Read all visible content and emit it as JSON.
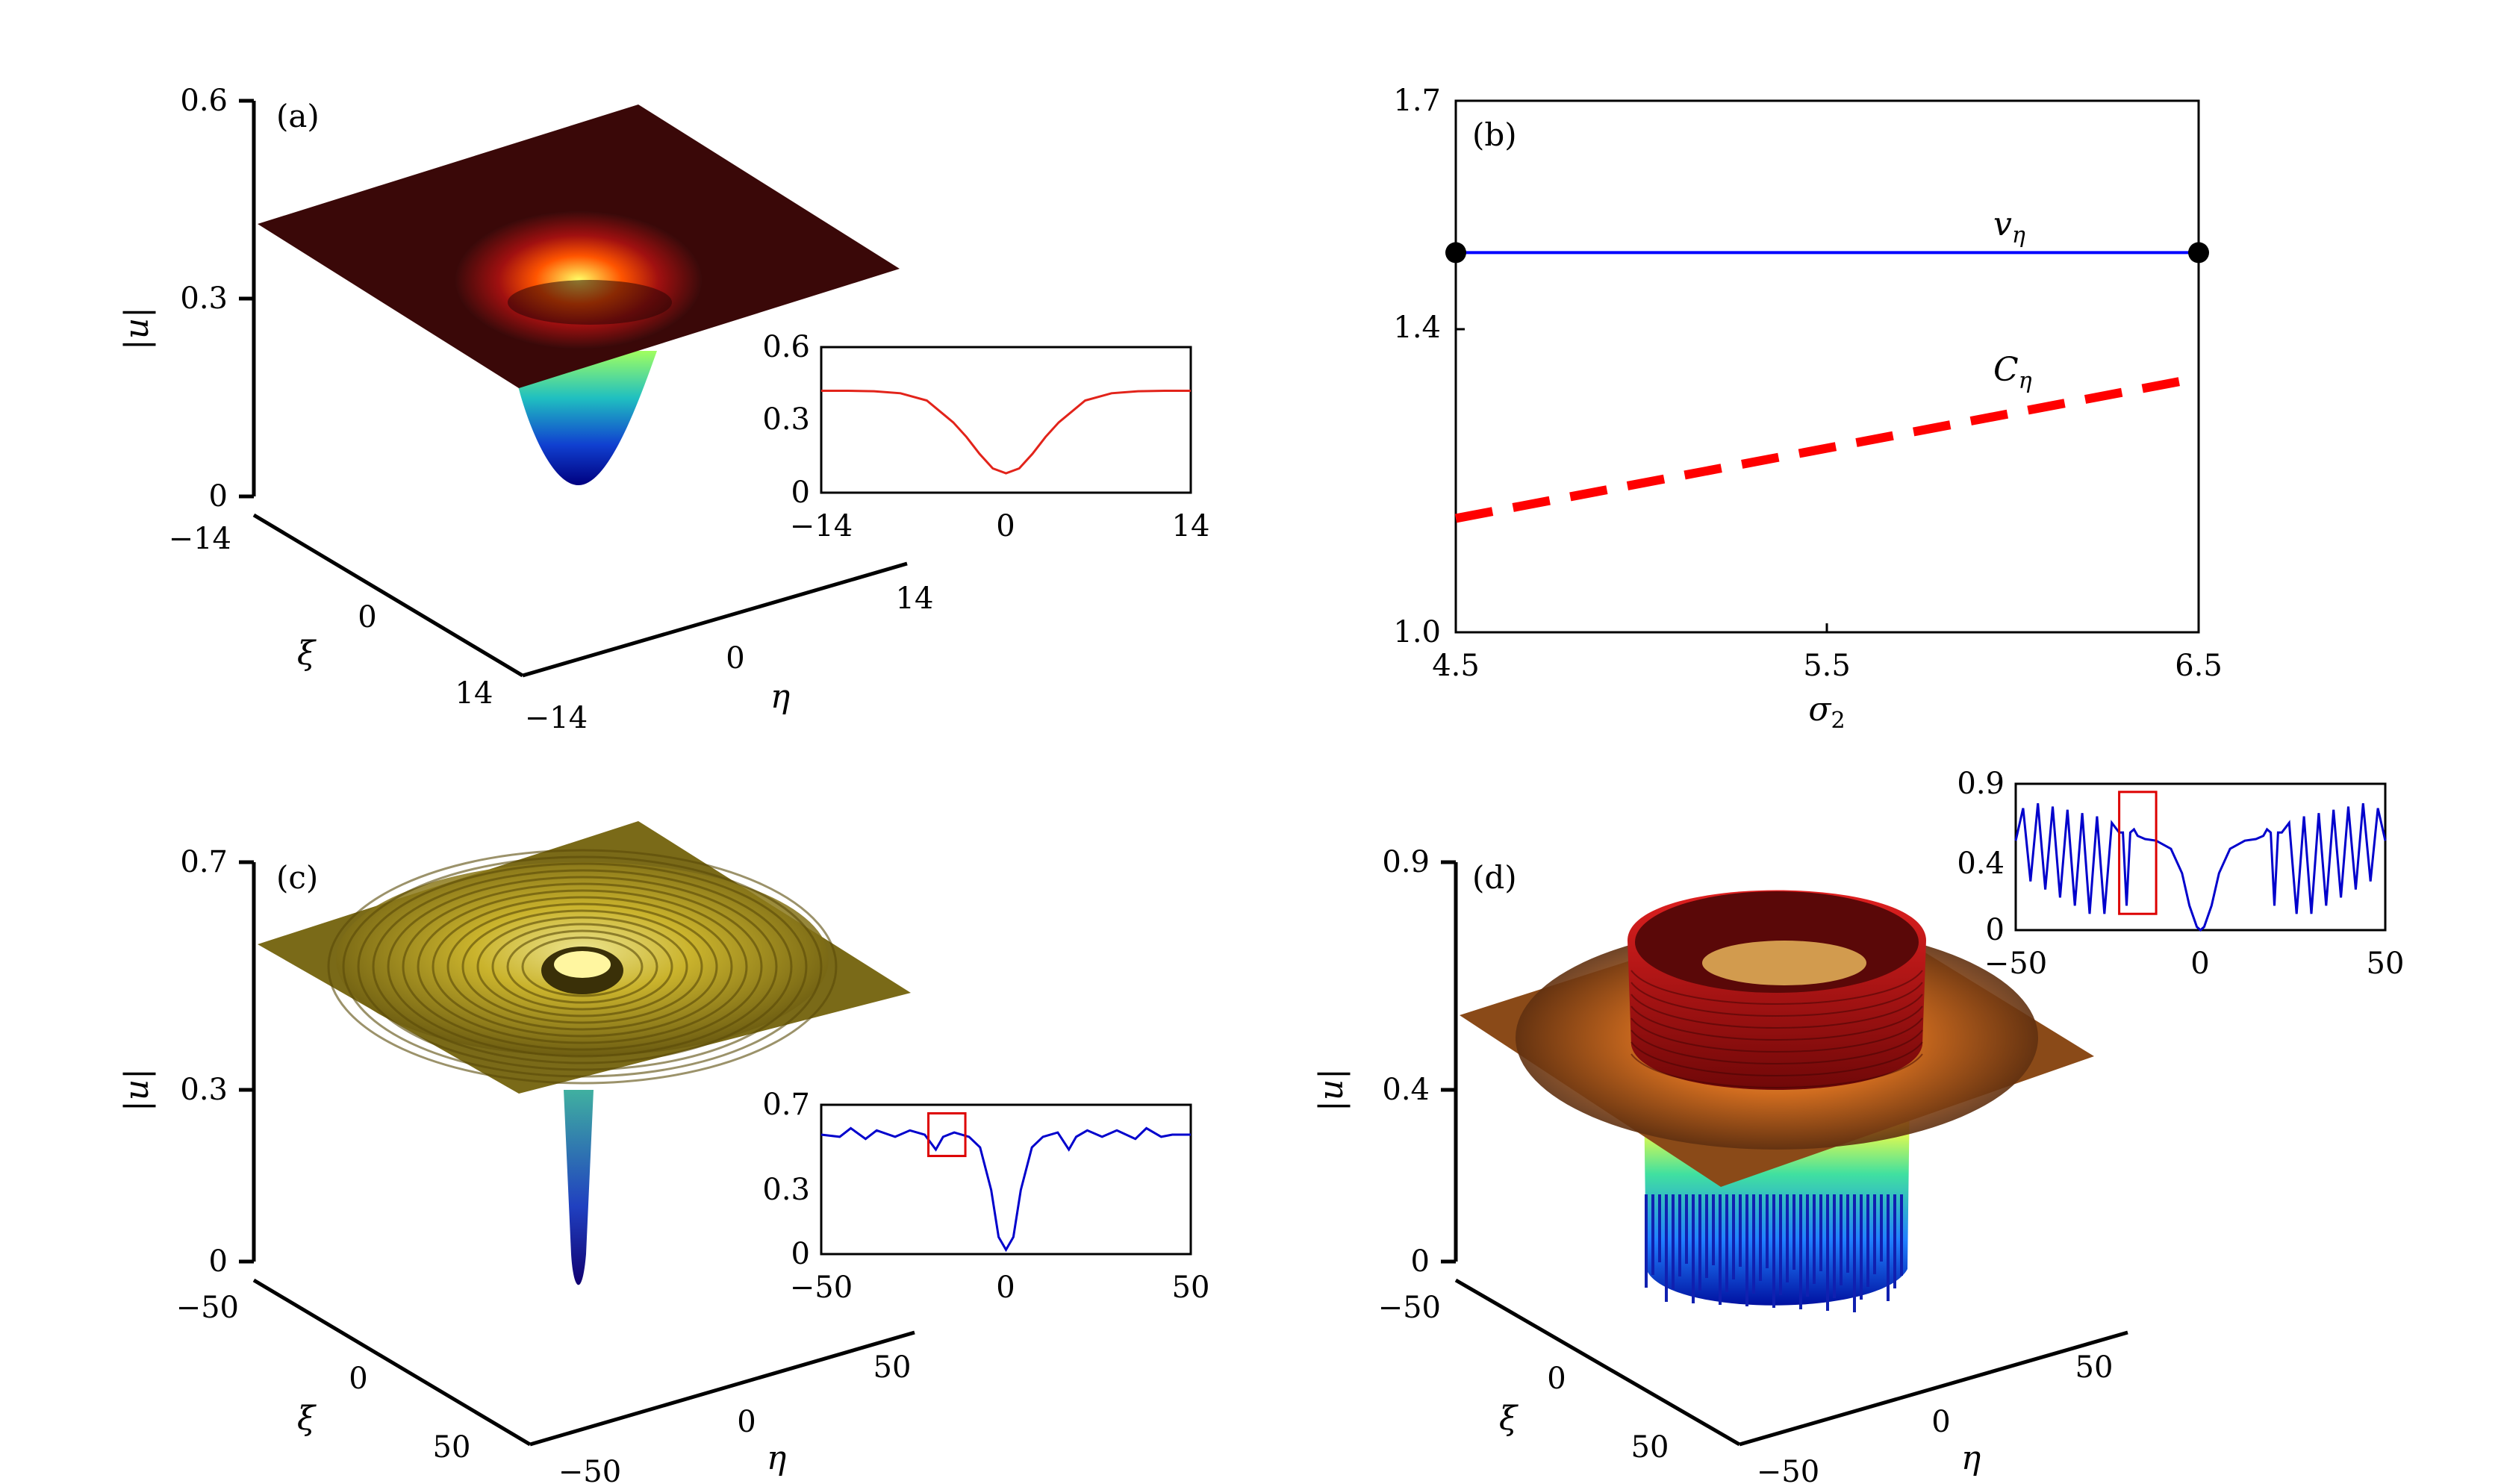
{
  "chart_data": [
    {
      "panel": "(a)",
      "type": "surface3d",
      "zlabel": "|u|",
      "xlabel": "ξ",
      "ylabel": "η",
      "z_ticks": [
        "0",
        "0.3",
        "0.6"
      ],
      "xi_ticks": [
        "−14",
        "0",
        "14"
      ],
      "eta_ticks": [
        "−14",
        "0",
        "14"
      ],
      "zlim": [
        0,
        0.6
      ],
      "colormap": "jet",
      "inset": {
        "type": "line",
        "color": "#e2231a",
        "x_ticks": [
          "−14",
          "0",
          "14"
        ],
        "y_ticks": [
          "0",
          "0.3",
          "0.6"
        ],
        "xlim": [
          -14,
          14
        ],
        "ylim": [
          0,
          0.6
        ],
        "x": [
          -14,
          -12,
          -10,
          -8,
          -6,
          -4,
          -3,
          -2,
          -1,
          0,
          1,
          2,
          3,
          4,
          6,
          8,
          10,
          12,
          14
        ],
        "y": [
          0.42,
          0.42,
          0.418,
          0.41,
          0.38,
          0.29,
          0.23,
          0.16,
          0.1,
          0.08,
          0.1,
          0.16,
          0.23,
          0.29,
          0.38,
          0.41,
          0.418,
          0.42,
          0.42
        ]
      }
    },
    {
      "panel": "(b)",
      "type": "line",
      "xlabel": "σ₂",
      "x_ticks": [
        "4.5",
        "5.5",
        "6.5"
      ],
      "y_ticks": [
        "1.0",
        "1.4",
        "1.7"
      ],
      "xlim": [
        4.5,
        6.5
      ],
      "ylim": [
        1.0,
        1.7
      ],
      "series": [
        {
          "name": "v_η",
          "label_main": "v",
          "label_sub": "η",
          "color": "#0000ff",
          "style": "solid",
          "x": [
            4.5,
            6.5
          ],
          "y": [
            1.5,
            1.5
          ],
          "endpoint_markers": true
        },
        {
          "name": "C_η",
          "label_main": "C",
          "label_sub": "η",
          "color": "#ff0000",
          "style": "dashed",
          "x": [
            4.5,
            6.5
          ],
          "y": [
            1.15,
            1.335
          ]
        }
      ]
    },
    {
      "panel": "(c)",
      "type": "surface3d",
      "zlabel": "|u|",
      "xlabel": "ξ",
      "ylabel": "η",
      "z_ticks": [
        "0",
        "0.3",
        "0.7"
      ],
      "xi_ticks": [
        "−50",
        "0",
        "50"
      ],
      "eta_ticks": [
        "−50",
        "0",
        "50"
      ],
      "zlim": [
        0,
        0.7
      ],
      "colormap": "gold",
      "inset": {
        "type": "line",
        "color": "#0000cc",
        "x_ticks": [
          "−50",
          "0",
          "50"
        ],
        "y_ticks": [
          "0",
          "0.3",
          "0.7"
        ],
        "xlim": [
          -50,
          50
        ],
        "ylim": [
          0,
          0.7
        ],
        "x": [
          -50,
          -45,
          -42,
          -38,
          -35,
          -30,
          -26,
          -22,
          -19,
          -17,
          -14,
          -10,
          -7,
          -4,
          -2,
          0,
          2,
          4,
          7,
          10,
          14,
          17,
          19,
          22,
          26,
          30,
          35,
          38,
          42,
          45,
          50
        ],
        "y": [
          0.56,
          0.55,
          0.59,
          0.54,
          0.58,
          0.55,
          0.58,
          0.56,
          0.49,
          0.55,
          0.57,
          0.55,
          0.5,
          0.3,
          0.08,
          0.02,
          0.08,
          0.3,
          0.5,
          0.55,
          0.57,
          0.49,
          0.55,
          0.58,
          0.55,
          0.58,
          0.54,
          0.59,
          0.55,
          0.56,
          0.56
        ],
        "highlight_box": [
          -21,
          -11
        ]
      }
    },
    {
      "panel": "(d)",
      "type": "surface3d",
      "zlabel": "|u|",
      "xlabel": "ξ",
      "ylabel": "η",
      "z_ticks": [
        "0",
        "0.4",
        "0.9"
      ],
      "xi_ticks": [
        "−50",
        "0",
        "50"
      ],
      "eta_ticks": [
        "−50",
        "0",
        "50"
      ],
      "zlim": [
        0,
        0.9
      ],
      "colormap": "jet",
      "inset": {
        "type": "line",
        "color": "#0000cc",
        "x_ticks": [
          "−50",
          "0",
          "50"
        ],
        "y_ticks": [
          "0",
          "0.4",
          "0.9"
        ],
        "xlim": [
          -50,
          50
        ],
        "ylim": [
          0,
          0.9
        ],
        "x": [
          -50,
          -48,
          -46,
          -44,
          -42,
          -40,
          -38,
          -36,
          -34,
          -32,
          -30,
          -28,
          -26,
          -24,
          -22,
          -21,
          -20,
          -19,
          -18,
          -17,
          -15,
          -12,
          -8,
          -5,
          -3,
          -1,
          0,
          1,
          3,
          5,
          8,
          12,
          15,
          17,
          18,
          19,
          20,
          21,
          22,
          24,
          26,
          28,
          30,
          32,
          34,
          36,
          38,
          40,
          42,
          44,
          46,
          48,
          50
        ],
        "y": [
          0.55,
          0.75,
          0.3,
          0.78,
          0.25,
          0.76,
          0.2,
          0.74,
          0.15,
          0.72,
          0.1,
          0.7,
          0.1,
          0.66,
          0.6,
          0.6,
          0.15,
          0.6,
          0.62,
          0.58,
          0.56,
          0.55,
          0.5,
          0.35,
          0.15,
          0.02,
          0.0,
          0.02,
          0.15,
          0.35,
          0.5,
          0.55,
          0.56,
          0.58,
          0.62,
          0.6,
          0.15,
          0.6,
          0.6,
          0.66,
          0.1,
          0.7,
          0.1,
          0.72,
          0.15,
          0.74,
          0.2,
          0.76,
          0.25,
          0.78,
          0.3,
          0.75,
          0.55
        ],
        "highlight_box": [
          -22,
          -12
        ]
      }
    }
  ]
}
